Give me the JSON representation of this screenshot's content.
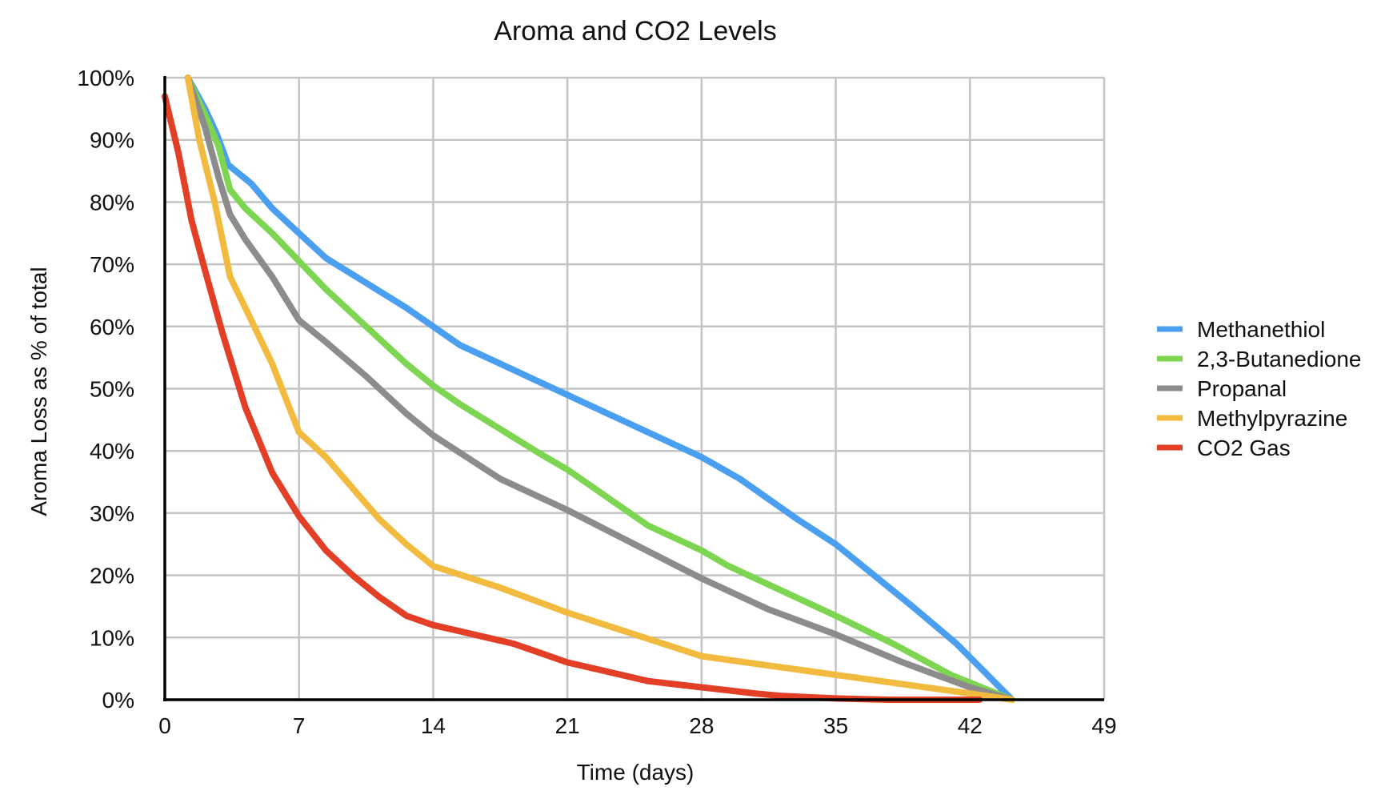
{
  "chart_data": {
    "type": "line",
    "title": "Aroma and CO2 Levels",
    "xlabel": "Time (days)",
    "ylabel": "Aroma Loss as % of total",
    "xlim": [
      0,
      49
    ],
    "ylim": [
      0,
      100
    ],
    "x_ticks": [
      0,
      7,
      14,
      21,
      28,
      35,
      42,
      49
    ],
    "y_ticks": [
      0,
      10,
      20,
      30,
      40,
      50,
      60,
      70,
      80,
      90,
      100
    ],
    "y_tick_labels": [
      "0%",
      "10%",
      "20%",
      "30%",
      "40%",
      "50%",
      "60%",
      "70%",
      "80%",
      "90%",
      "100%"
    ],
    "grid": true,
    "legend_position": "right",
    "series": [
      {
        "name": "Methanethiol",
        "color": "#4a9ff0",
        "x": [
          1.2,
          2.1,
          2.7,
          3.3,
          4.5,
          5.6,
          7,
          8.4,
          10.5,
          12.6,
          14,
          15.4,
          17.5,
          19.6,
          21,
          23.1,
          25.2,
          28,
          30,
          33,
          35,
          37,
          39,
          41.3,
          44.2
        ],
        "y": [
          100,
          95,
          91,
          86,
          83,
          79,
          75,
          71,
          67,
          63,
          60,
          57,
          54,
          51,
          49,
          46,
          43,
          39,
          35.5,
          29,
          25,
          20,
          15,
          9,
          0
        ]
      },
      {
        "name": "2,3-Butanedione",
        "color": "#7ed551",
        "x": [
          1.2,
          2.1,
          2.8,
          3.4,
          4.2,
          5.6,
          7,
          8.4,
          10.5,
          12.6,
          14,
          15.4,
          17.5,
          19.6,
          21,
          23.1,
          25.2,
          28,
          29.4,
          31.5,
          35,
          38,
          41,
          44.2
        ],
        "y": [
          100,
          94,
          89,
          82,
          79,
          75,
          70.5,
          66,
          60,
          54,
          50.5,
          47.5,
          43.5,
          39.5,
          37,
          32.5,
          28,
          24,
          21.5,
          18.5,
          13.5,
          9,
          4,
          0
        ]
      },
      {
        "name": "Propanal",
        "color": "#8c8c8c",
        "x": [
          1.2,
          2.1,
          2.8,
          3.4,
          4.2,
          5.6,
          7,
          8.4,
          10.5,
          12.6,
          14,
          17.5,
          21,
          24.5,
          28,
          31.5,
          35,
          38.5,
          42,
          44.2
        ],
        "y": [
          100,
          92,
          84,
          78,
          74,
          68,
          61,
          57.5,
          52,
          46,
          42.5,
          35.5,
          30.5,
          25,
          19.5,
          14.5,
          10.5,
          6,
          2,
          0
        ]
      },
      {
        "name": "Methylpyrazine",
        "color": "#f2bb3f",
        "x": [
          1.2,
          1.8,
          2.6,
          3.4,
          4.2,
          5.6,
          7,
          8.4,
          11.2,
          12.6,
          14,
          17.5,
          21,
          24.5,
          28,
          31.5,
          35,
          38.5,
          42,
          44.2
        ],
        "y": [
          100,
          90,
          80,
          68,
          63,
          54,
          43,
          39,
          29,
          25,
          21.5,
          18,
          14,
          10.5,
          7,
          5.5,
          4,
          2.5,
          1,
          0
        ]
      },
      {
        "name": "CO2 Gas",
        "color": "#e33e26",
        "x": [
          0,
          0.7,
          1.4,
          2.1,
          3,
          4.2,
          5.6,
          7,
          8.4,
          9.8,
          11.2,
          12.6,
          14,
          15.4,
          16.8,
          18.2,
          19.6,
          21,
          22.4,
          23.8,
          25.2,
          26.6,
          28,
          29.4,
          30.8,
          32.2,
          33.6,
          35,
          36.4,
          37.8,
          39.2,
          40.6,
          42,
          42.5
        ],
        "y": [
          97,
          88,
          77,
          69,
          59,
          47,
          36.5,
          29.5,
          24,
          20,
          16.5,
          13.5,
          12,
          11,
          10,
          9,
          7.5,
          6,
          5,
          4,
          3,
          2.5,
          2,
          1.5,
          1,
          0.6,
          0.4,
          0.2,
          0.1,
          0,
          0,
          0,
          0,
          0
        ]
      }
    ]
  }
}
